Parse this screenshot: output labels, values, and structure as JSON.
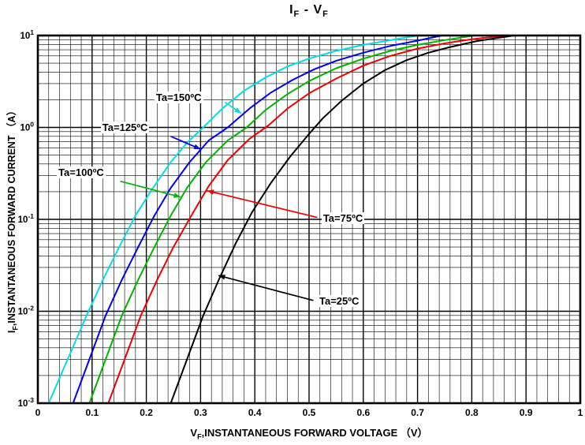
{
  "page": {
    "background": "#ffffff"
  },
  "title": {
    "left_base": "I",
    "left_sub": "F",
    "separator": " - ",
    "right_base": "V",
    "right_sub": "F"
  },
  "chart_data": {
    "type": "line",
    "title": "IF - VF",
    "x_axis": {
      "label": "VF,INSTANTANEOUS FORWARD VOLTAGE （V）",
      "label_parts": {
        "base": "V",
        "sub": "F",
        "rest": ",INSTANTANEOUS FORWARD VOLTAGE （V）"
      },
      "scale": "linear",
      "lim": [
        0,
        1
      ],
      "ticks": [
        {
          "v": 0,
          "label": "0"
        },
        {
          "v": 0.1,
          "label": "0.1"
        },
        {
          "v": 0.2,
          "label": "0.2"
        },
        {
          "v": 0.3,
          "label": "0.3"
        },
        {
          "v": 0.4,
          "label": "0.4"
        },
        {
          "v": 0.5,
          "label": "0.5"
        },
        {
          "v": 0.6,
          "label": "0.6"
        },
        {
          "v": 0.7,
          "label": "0.7"
        },
        {
          "v": 0.8,
          "label": "0.8"
        },
        {
          "v": 0.9,
          "label": "0.9"
        },
        {
          "v": 1,
          "label": "1"
        }
      ]
    },
    "y_axis": {
      "label": "IF,INSTANTANEOUS FORWARD CURRENT （A）",
      "label_parts": {
        "base": "I",
        "sub": "F",
        "rest": ",INSTANTANEOUS FORWARD CURRENT （A）"
      },
      "scale": "log",
      "lim": [
        0.001,
        10
      ],
      "ticks": [
        {
          "v": 10,
          "base": "10",
          "exp": "1"
        },
        {
          "v": 1,
          "base": "10",
          "exp": "0"
        },
        {
          "v": 0.1,
          "base": "10",
          "exp": "-1"
        },
        {
          "v": 0.01,
          "base": "10",
          "exp": "-2"
        },
        {
          "v": 0.001,
          "base": "10",
          "exp": "-3"
        }
      ]
    },
    "grid": {
      "x_minor_step": 0.02,
      "color": "#000000"
    },
    "series": [
      {
        "name": "Ta-150C",
        "color": "#00dde8",
        "points": [
          [
            0.02,
            0.001
          ],
          [
            0.055,
            0.003
          ],
          [
            0.09,
            0.009
          ],
          [
            0.12,
            0.022
          ],
          [
            0.15,
            0.05
          ],
          [
            0.18,
            0.11
          ],
          [
            0.21,
            0.21
          ],
          [
            0.245,
            0.42
          ],
          [
            0.275,
            0.68
          ],
          [
            0.305,
            1.0
          ],
          [
            0.34,
            1.6
          ],
          [
            0.38,
            2.5
          ],
          [
            0.42,
            3.5
          ],
          [
            0.46,
            4.6
          ],
          [
            0.5,
            5.6
          ],
          [
            0.55,
            6.8
          ],
          [
            0.6,
            7.9
          ],
          [
            0.65,
            8.9
          ],
          [
            0.7,
            10
          ]
        ],
        "annotation": {
          "label": "Ta=150ºC",
          "label_at": [
            0.215,
            2.0
          ],
          "arrow": [
            [
              0.345,
              1.88
            ],
            [
              0.375,
              1.42
            ]
          ]
        }
      },
      {
        "name": "Ta-125C",
        "color": "#0000f0",
        "points": [
          [
            0.065,
            0.001
          ],
          [
            0.095,
            0.003
          ],
          [
            0.125,
            0.009
          ],
          [
            0.155,
            0.022
          ],
          [
            0.185,
            0.05
          ],
          [
            0.215,
            0.11
          ],
          [
            0.245,
            0.22
          ],
          [
            0.28,
            0.42
          ],
          [
            0.315,
            0.72
          ],
          [
            0.35,
            1.0
          ],
          [
            0.39,
            1.6
          ],
          [
            0.43,
            2.4
          ],
          [
            0.47,
            3.3
          ],
          [
            0.51,
            4.3
          ],
          [
            0.55,
            5.3
          ],
          [
            0.6,
            6.5
          ],
          [
            0.65,
            7.7
          ],
          [
            0.7,
            8.8
          ],
          [
            0.745,
            10
          ]
        ],
        "annotation": {
          "label": "Ta=125ºC",
          "label_at": [
            0.116,
            0.95
          ],
          "arrow": [
            [
              0.245,
              0.8
            ],
            [
              0.3,
              0.58
            ]
          ]
        }
      },
      {
        "name": "Ta-100C",
        "color": "#00b400",
        "points": [
          [
            0.095,
            0.001
          ],
          [
            0.125,
            0.003
          ],
          [
            0.155,
            0.009
          ],
          [
            0.185,
            0.022
          ],
          [
            0.215,
            0.05
          ],
          [
            0.245,
            0.11
          ],
          [
            0.275,
            0.22
          ],
          [
            0.31,
            0.42
          ],
          [
            0.35,
            0.72
          ],
          [
            0.385,
            1.0
          ],
          [
            0.42,
            1.55
          ],
          [
            0.46,
            2.3
          ],
          [
            0.5,
            3.2
          ],
          [
            0.55,
            4.4
          ],
          [
            0.6,
            5.6
          ],
          [
            0.65,
            6.8
          ],
          [
            0.7,
            7.9
          ],
          [
            0.755,
            9.0
          ],
          [
            0.805,
            10
          ]
        ],
        "annotation": {
          "label": "Ta=100ºC",
          "label_at": [
            0.035,
            0.31
          ],
          "arrow": [
            [
              0.152,
              0.26
            ],
            [
              0.263,
              0.175
            ]
          ]
        }
      },
      {
        "name": "Ta-75C",
        "color": "#ee0000",
        "points": [
          [
            0.13,
            0.001
          ],
          [
            0.16,
            0.003
          ],
          [
            0.19,
            0.009
          ],
          [
            0.22,
            0.022
          ],
          [
            0.25,
            0.05
          ],
          [
            0.285,
            0.115
          ],
          [
            0.315,
            0.23
          ],
          [
            0.35,
            0.44
          ],
          [
            0.39,
            0.75
          ],
          [
            0.425,
            1.05
          ],
          [
            0.46,
            1.6
          ],
          [
            0.5,
            2.35
          ],
          [
            0.55,
            3.4
          ],
          [
            0.6,
            4.7
          ],
          [
            0.65,
            6.0
          ],
          [
            0.7,
            7.2
          ],
          [
            0.75,
            8.2
          ],
          [
            0.8,
            9.1
          ],
          [
            0.862,
            10
          ]
        ],
        "annotation": {
          "label": "Ta=75ºC",
          "label_at": [
            0.523,
            0.098
          ],
          "arrow": [
            [
              0.515,
              0.105
            ],
            [
              0.312,
              0.205
            ]
          ]
        }
      },
      {
        "name": "Ta-25C",
        "color": "#000000",
        "points": [
          [
            0.245,
            0.001
          ],
          [
            0.275,
            0.003
          ],
          [
            0.305,
            0.009
          ],
          [
            0.335,
            0.023
          ],
          [
            0.365,
            0.055
          ],
          [
            0.395,
            0.12
          ],
          [
            0.43,
            0.25
          ],
          [
            0.465,
            0.48
          ],
          [
            0.5,
            0.85
          ],
          [
            0.525,
            1.25
          ],
          [
            0.56,
            1.95
          ],
          [
            0.6,
            3.0
          ],
          [
            0.64,
            4.2
          ],
          [
            0.68,
            5.4
          ],
          [
            0.72,
            6.5
          ],
          [
            0.76,
            7.5
          ],
          [
            0.81,
            8.7
          ],
          [
            0.878,
            10
          ]
        ],
        "annotation": {
          "label": "Ta=25ºC",
          "label_at": [
            0.516,
            0.0122
          ],
          "arrow": [
            [
              0.508,
              0.0131
            ],
            [
              0.333,
              0.0245
            ]
          ]
        }
      }
    ]
  }
}
